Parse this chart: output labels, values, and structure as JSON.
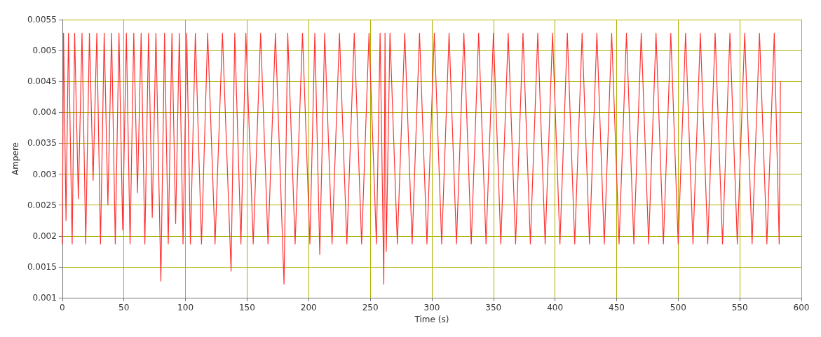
{
  "chart_data": {
    "type": "line",
    "xlabel": "Time (s)",
    "ylabel": "Ampere",
    "xlim": [
      0,
      600
    ],
    "xticks": [
      0,
      50,
      100,
      150,
      200,
      250,
      300,
      350,
      400,
      450,
      500,
      550,
      600
    ],
    "ylim": [
      0.001,
      0.0055
    ],
    "yticks": [
      0.001,
      0.0015,
      0.002,
      0.0025,
      0.003,
      0.0035,
      0.004,
      0.0045,
      0.005,
      0.0055
    ],
    "grid": true,
    "marker": "none",
    "line_style": "solid",
    "series": [
      {
        "color": "#ff3333",
        "x": [
          0,
          1,
          3,
          5,
          8,
          10,
          13,
          16,
          19,
          22,
          25,
          28,
          31,
          34,
          37,
          40,
          43,
          46,
          49,
          52,
          55,
          58,
          61,
          64,
          67,
          70,
          73,
          76,
          80,
          83,
          86,
          89,
          92,
          95,
          98,
          101,
          104,
          108,
          113,
          118,
          124,
          130,
          137,
          140,
          145,
          149,
          155,
          161,
          167,
          173,
          180,
          183,
          189,
          195,
          201,
          205,
          209,
          213,
          219,
          225,
          231,
          237,
          243,
          249,
          255,
          258,
          261,
          262,
          263,
          266,
          272,
          278,
          284,
          290,
          296,
          302,
          308,
          314,
          320,
          326,
          332,
          338,
          344,
          350,
          356,
          362,
          368,
          374,
          380,
          386,
          392,
          398,
          404,
          410,
          416,
          422,
          428,
          434,
          440,
          446,
          452,
          458,
          464,
          470,
          476,
          482,
          488,
          494,
          500,
          506,
          512,
          518,
          524,
          530,
          536,
          542,
          548,
          554,
          560,
          566,
          572,
          578,
          582,
          583
        ],
        "values": [
          0.00187,
          0.00528,
          0.00225,
          0.00528,
          0.00187,
          0.00528,
          0.0026,
          0.00528,
          0.00187,
          0.00528,
          0.0029,
          0.00528,
          0.00187,
          0.00528,
          0.0025,
          0.00528,
          0.00187,
          0.00528,
          0.0021,
          0.00528,
          0.00187,
          0.00528,
          0.0027,
          0.00528,
          0.00187,
          0.00528,
          0.0023,
          0.00528,
          0.00127,
          0.00528,
          0.00187,
          0.00528,
          0.0022,
          0.00528,
          0.00187,
          0.00528,
          0.00187,
          0.00528,
          0.00187,
          0.00528,
          0.00187,
          0.00528,
          0.00143,
          0.00528,
          0.00187,
          0.00528,
          0.00187,
          0.00528,
          0.00187,
          0.00528,
          0.00122,
          0.00528,
          0.00187,
          0.00528,
          0.00187,
          0.00528,
          0.0017,
          0.00528,
          0.00187,
          0.00528,
          0.00187,
          0.00528,
          0.00187,
          0.00528,
          0.00187,
          0.00528,
          0.00122,
          0.00528,
          0.00175,
          0.00528,
          0.00187,
          0.00528,
          0.00187,
          0.00528,
          0.00187,
          0.00528,
          0.00187,
          0.00528,
          0.00187,
          0.00528,
          0.00187,
          0.00528,
          0.00187,
          0.00528,
          0.00187,
          0.00528,
          0.00187,
          0.00528,
          0.00187,
          0.00528,
          0.00187,
          0.00528,
          0.00187,
          0.00528,
          0.00187,
          0.00528,
          0.00187,
          0.00528,
          0.00187,
          0.00528,
          0.00187,
          0.00528,
          0.00187,
          0.00528,
          0.00187,
          0.00528,
          0.00187,
          0.00528,
          0.00187,
          0.00528,
          0.00187,
          0.00528,
          0.00187,
          0.00528,
          0.00187,
          0.00528,
          0.00187,
          0.00528,
          0.00187,
          0.00528,
          0.00187,
          0.00528,
          0.00187,
          0.0045
        ]
      }
    ]
  }
}
